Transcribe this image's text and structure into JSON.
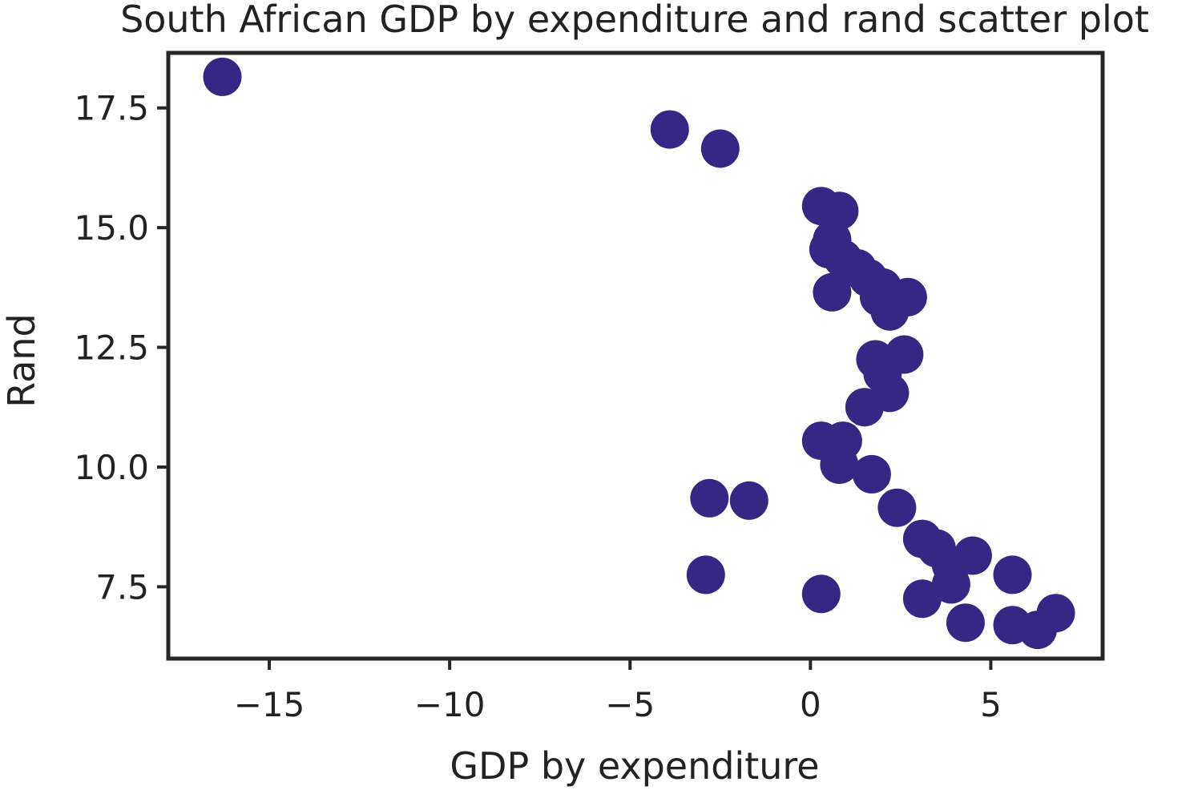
{
  "chart_data": {
    "type": "scatter",
    "title": "South African GDP by expenditure and rand scatter plot",
    "xlabel": "GDP by expenditure",
    "ylabel": "Rand",
    "xlim": [
      -17.8,
      8.1
    ],
    "ylim": [
      6.0,
      18.65
    ],
    "xticks": [
      -15,
      -10,
      -5,
      0,
      5
    ],
    "xtick_labels": [
      "−15",
      "−10",
      "−5",
      "0",
      "5"
    ],
    "yticks": [
      7.5,
      10.0,
      12.5,
      15.0,
      17.5
    ],
    "ytick_labels": [
      "7.5",
      "10.0",
      "12.5",
      "15.0",
      "17.5"
    ],
    "grid": false,
    "marker_color": "#372785",
    "series": [
      {
        "points": [
          {
            "x": -16.3,
            "y": 18.15
          },
          {
            "x": -3.9,
            "y": 17.05
          },
          {
            "x": -2.5,
            "y": 16.65
          },
          {
            "x": 0.3,
            "y": 15.45
          },
          {
            "x": 0.8,
            "y": 15.35
          },
          {
            "x": 0.6,
            "y": 14.75
          },
          {
            "x": 0.5,
            "y": 14.55
          },
          {
            "x": 0.9,
            "y": 14.35
          },
          {
            "x": 1.3,
            "y": 14.15
          },
          {
            "x": 1.6,
            "y": 13.95
          },
          {
            "x": 2.0,
            "y": 13.75
          },
          {
            "x": 0.6,
            "y": 13.65
          },
          {
            "x": 1.9,
            "y": 13.55
          },
          {
            "x": 2.7,
            "y": 13.55
          },
          {
            "x": 2.2,
            "y": 13.25
          },
          {
            "x": 2.6,
            "y": 12.35
          },
          {
            "x": 1.8,
            "y": 12.25
          },
          {
            "x": 2.0,
            "y": 11.95
          },
          {
            "x": 2.2,
            "y": 11.55
          },
          {
            "x": 1.5,
            "y": 11.25
          },
          {
            "x": 0.3,
            "y": 10.55
          },
          {
            "x": 0.9,
            "y": 10.55
          },
          {
            "x": 0.8,
            "y": 10.05
          },
          {
            "x": 1.7,
            "y": 9.85
          },
          {
            "x": -2.8,
            "y": 9.35
          },
          {
            "x": -1.7,
            "y": 9.3
          },
          {
            "x": 2.4,
            "y": 9.15
          },
          {
            "x": 3.1,
            "y": 8.5
          },
          {
            "x": 3.5,
            "y": 8.3
          },
          {
            "x": 4.5,
            "y": 8.15
          },
          {
            "x": 3.9,
            "y": 7.95
          },
          {
            "x": 5.6,
            "y": 7.75
          },
          {
            "x": -2.9,
            "y": 7.75
          },
          {
            "x": 3.9,
            "y": 7.55
          },
          {
            "x": 0.3,
            "y": 7.35
          },
          {
            "x": 3.1,
            "y": 7.25
          },
          {
            "x": 6.8,
            "y": 6.95
          },
          {
            "x": 4.3,
            "y": 6.75
          },
          {
            "x": 5.6,
            "y": 6.7
          },
          {
            "x": 6.3,
            "y": 6.6
          }
        ]
      }
    ]
  }
}
